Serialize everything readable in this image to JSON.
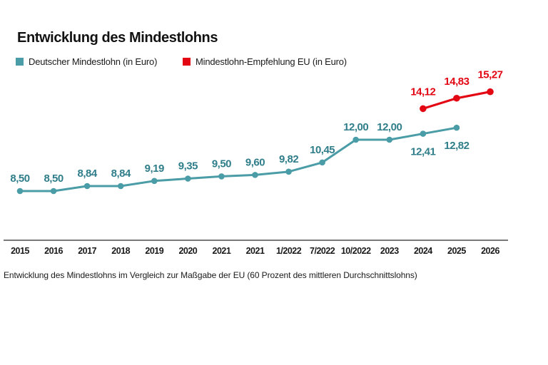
{
  "header": {
    "title": "Entwicklung des Mindestlohns"
  },
  "legend": {
    "items": [
      {
        "label": "Deutscher Mindestlohn (in Euro)",
        "color": "#4a9ca6"
      },
      {
        "label": "Mindestlohn-Empfehlung EU (in Euro)",
        "color": "#e30613"
      }
    ]
  },
  "caption": "Entwicklung des Mindestlohns im Vergleich zur Maßgabe der EU (60 Prozent des mittleren Durchschnittslohns)",
  "chart_data": {
    "type": "line",
    "title": "Entwicklung des Mindestlohns",
    "categories": [
      "2015",
      "2016",
      "2017",
      "2018",
      "2019",
      "2020",
      "2021",
      "2021",
      "1/2022",
      "7/2022",
      "10/2022",
      "2023",
      "2024",
      "2025",
      "2026"
    ],
    "series": [
      {
        "name": "Deutscher Mindestlohn (in Euro)",
        "color": "#4a9ca6",
        "label_color": "#2f7e8a",
        "values": [
          8.5,
          8.5,
          8.84,
          8.84,
          9.19,
          9.35,
          9.5,
          9.6,
          9.82,
          10.45,
          12.0,
          12.0,
          12.41,
          12.82,
          null
        ],
        "labels": [
          "8,50",
          "8,50",
          "8,84",
          "8,84",
          "9,19",
          "9,35",
          "9,50",
          "9,60",
          "9,82",
          "10,45",
          "12,00",
          "12,00",
          "12,41",
          "12,82",
          null
        ],
        "labels_below_indices": [
          12,
          13
        ]
      },
      {
        "name": "Mindestlohn-Empfehlung EU (in Euro)",
        "color": "#e30613",
        "label_color": "#e30613",
        "values": [
          null,
          null,
          null,
          null,
          null,
          null,
          null,
          null,
          null,
          null,
          null,
          null,
          14.12,
          14.83,
          15.27
        ],
        "labels": [
          null,
          null,
          null,
          null,
          null,
          null,
          null,
          null,
          null,
          null,
          null,
          null,
          "14,12",
          "14,83",
          "15,27"
        ],
        "labels_below_indices": []
      }
    ],
    "xlabel": "",
    "ylabel": "",
    "ylim": [
      8,
      16
    ],
    "grid": false,
    "legend_position": "top",
    "axis_color": "#4d4d4d",
    "tick_color": "#1a1a1a"
  }
}
